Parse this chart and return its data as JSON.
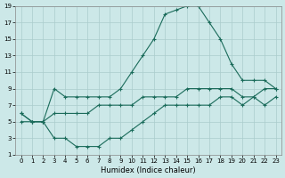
{
  "xlabel": "Humidex (Indice chaleur)",
  "bg_color": "#cce8e8",
  "grid_color": "#aacccc",
  "line_color": "#1a6b5a",
  "xlim_min": -0.5,
  "xlim_max": 23.5,
  "ylim_min": 1,
  "ylim_max": 19,
  "xticks": [
    0,
    1,
    2,
    3,
    4,
    5,
    6,
    7,
    8,
    9,
    10,
    11,
    12,
    13,
    14,
    15,
    16,
    17,
    18,
    19,
    20,
    21,
    22,
    23
  ],
  "yticks": [
    1,
    3,
    5,
    7,
    9,
    11,
    13,
    15,
    17,
    19
  ],
  "curve_peak_x": [
    0,
    1,
    2,
    3,
    4,
    5,
    6,
    7,
    8,
    9,
    10,
    11,
    12,
    13,
    14,
    15,
    16,
    17,
    18,
    19,
    20,
    21,
    22,
    23
  ],
  "curve_peak_y": [
    6,
    5,
    5,
    9,
    8,
    8,
    8,
    8,
    8,
    9,
    11,
    13,
    15,
    18,
    18.5,
    19,
    19,
    17,
    15,
    12,
    10,
    10,
    10,
    9
  ],
  "curve_upper_x": [
    0,
    1,
    2,
    3,
    4,
    5,
    6,
    7,
    8,
    9,
    10,
    11,
    12,
    13,
    14,
    15,
    16,
    17,
    18,
    19,
    20,
    21,
    22,
    23
  ],
  "curve_upper_y": [
    6,
    5,
    5,
    6,
    6,
    6,
    6,
    7,
    7,
    7,
    7,
    8,
    8,
    8,
    8,
    9,
    9,
    9,
    9,
    9,
    8,
    8,
    9,
    9
  ],
  "curve_lower_x": [
    0,
    1,
    2,
    3,
    4,
    5,
    6,
    7,
    8,
    9,
    10,
    11,
    12,
    13,
    14,
    15,
    16,
    17,
    18,
    19,
    20,
    21,
    22,
    23
  ],
  "curve_lower_y": [
    5,
    5,
    5,
    3,
    3,
    2,
    2,
    2,
    3,
    3,
    4,
    5,
    6,
    7,
    7,
    7,
    7,
    7,
    8,
    8,
    7,
    8,
    7,
    8
  ]
}
